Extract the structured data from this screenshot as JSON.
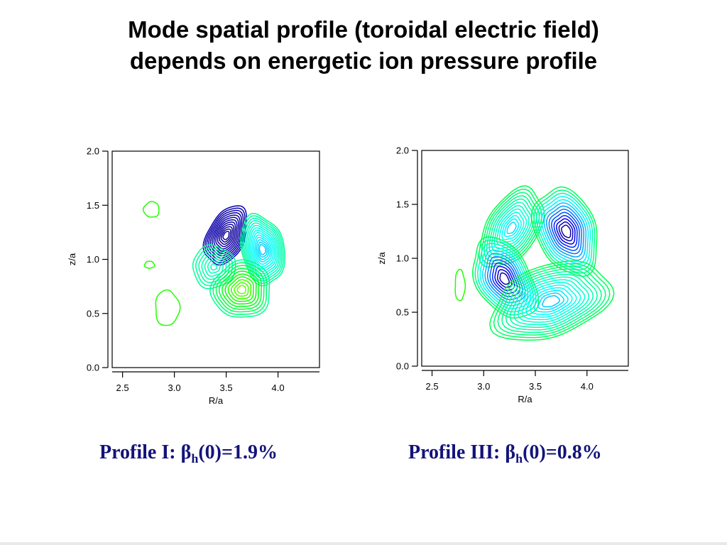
{
  "slide": {
    "title_line1": "Mode spatial profile (toroidal electric field)",
    "title_line2": "depends on energetic ion pressure profile"
  },
  "panels": [
    {
      "caption_prefix": "Profile I: ",
      "caption_symbol": "β",
      "caption_sub": "h",
      "caption_suffix": "(0)=1.9%"
    },
    {
      "caption_prefix": "Profile III: ",
      "caption_symbol": "β",
      "caption_sub": "h",
      "caption_suffix": "(0)=0.8%"
    }
  ],
  "chart_data": [
    {
      "type": "contour",
      "title": "",
      "xlabel": "R/a",
      "ylabel": "z/a",
      "xlim": [
        2.4,
        4.4
      ],
      "ylim": [
        0.0,
        2.0
      ],
      "xticks": [
        "2.5",
        "3.0",
        "3.5",
        "4.0"
      ],
      "yticks": [
        "0.0",
        "0.5",
        "1.0",
        "1.5",
        "2.0"
      ],
      "lobes": [
        {
          "x": 3.5,
          "y": 1.22,
          "sign": "positive"
        },
        {
          "x": 3.85,
          "y": 1.09,
          "sign": "negative"
        },
        {
          "x": 3.38,
          "y": 0.93,
          "sign": "negative"
        },
        {
          "x": 3.65,
          "y": 0.72,
          "sign": "positive"
        },
        {
          "x": 2.78,
          "y": 1.46,
          "sign": "weak"
        },
        {
          "x": 2.76,
          "y": 0.95,
          "sign": "weak"
        },
        {
          "x": 2.93,
          "y": 0.55,
          "sign": "weak"
        }
      ]
    },
    {
      "type": "contour",
      "title": "",
      "xlabel": "R/a",
      "ylabel": "z/a",
      "xlim": [
        2.4,
        4.4
      ],
      "ylim": [
        0.0,
        2.0
      ],
      "xticks": [
        "2.5",
        "3.0",
        "3.5",
        "4.0"
      ],
      "yticks": [
        "0.0",
        "0.5",
        "1.0",
        "1.5",
        "2.0"
      ],
      "lobes": [
        {
          "x": 3.27,
          "y": 1.28,
          "sign": "negative"
        },
        {
          "x": 3.8,
          "y": 1.25,
          "sign": "positive"
        },
        {
          "x": 3.2,
          "y": 0.81,
          "sign": "positive"
        },
        {
          "x": 3.65,
          "y": 0.6,
          "sign": "negative"
        },
        {
          "x": 2.77,
          "y": 0.75,
          "sign": "weak"
        }
      ]
    }
  ]
}
